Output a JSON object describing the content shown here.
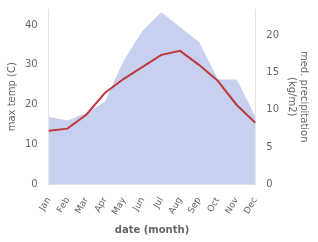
{
  "chart_data": {
    "type": "line",
    "xlabel": "date (month)",
    "ylabel": "max temp (C)",
    "y2label": "med. precipitation\n(kg/m2)",
    "categories": [
      "Jan",
      "Feb",
      "Mar",
      "Apr",
      "May",
      "Jun",
      "Jul",
      "Aug",
      "Sep",
      "Oct",
      "Nov",
      "Dec"
    ],
    "series": [
      {
        "type": "area",
        "color": "#c8d0f0",
        "axis": "y2",
        "values": [
          9.0,
          8.5,
          9.5,
          11.0,
          16.5,
          20.5,
          23.0,
          21.0,
          19.0,
          14.0,
          14.0,
          9.0
        ]
      },
      {
        "type": "line",
        "color": "#c0393b",
        "values": [
          13.5,
          14.0,
          17.5,
          23.0,
          26.5,
          29.5,
          32.5,
          33.5,
          30.0,
          26.0,
          20.0,
          15.5
        ]
      }
    ],
    "ylim": [
      0,
      44
    ],
    "yticks": [
      0,
      10,
      20,
      30,
      40
    ],
    "y2lim": [
      0,
      23.5
    ],
    "y2ticks": [
      0,
      5,
      10,
      15,
      20
    ],
    "grid": false
  }
}
